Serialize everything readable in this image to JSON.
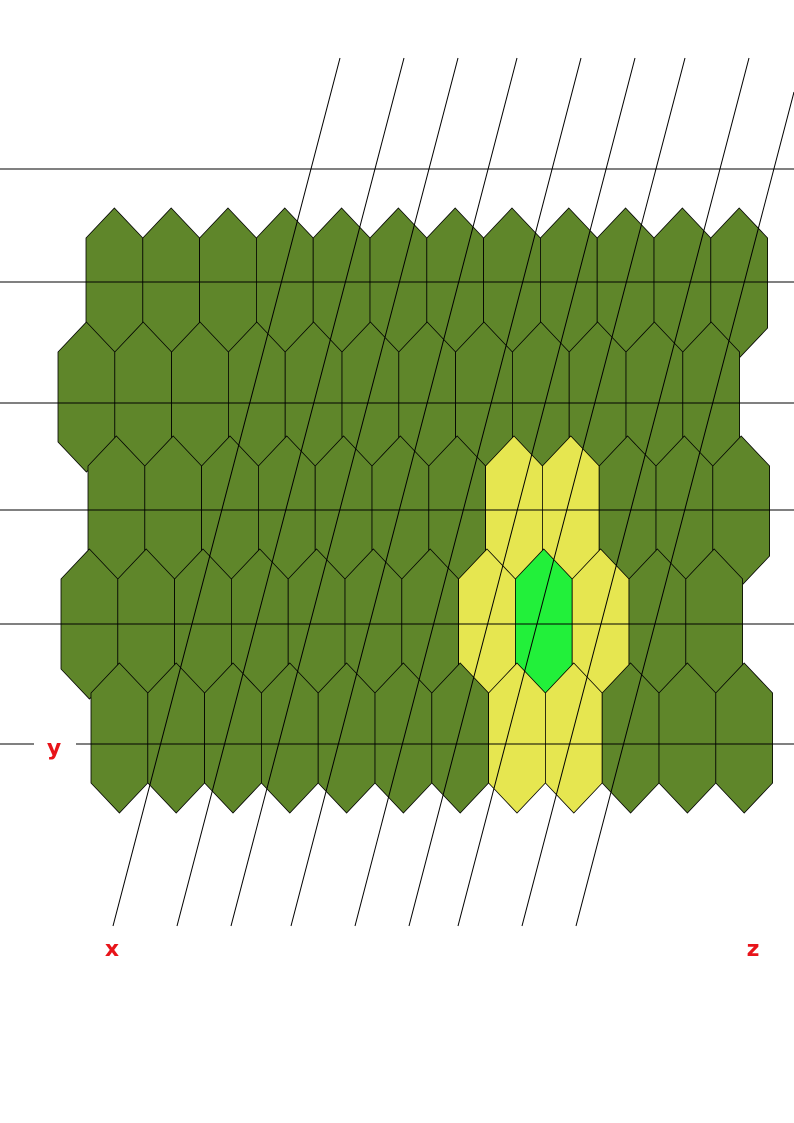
{
  "diagram": {
    "axis_labels": {
      "x": "x",
      "y": "y",
      "z": "z"
    },
    "grid": {
      "rows": 6,
      "columns": 12,
      "row_shift_pattern": [
        0,
        -1,
        0,
        -1,
        0,
        0
      ]
    },
    "highlighted_cells": [
      {
        "row": 2,
        "col": 7,
        "state": "neighbor"
      },
      {
        "row": 2,
        "col": 8,
        "state": "neighbor"
      },
      {
        "row": 3,
        "col": 7,
        "state": "neighbor"
      },
      {
        "row": 3,
        "col": 8,
        "state": "selected"
      },
      {
        "row": 3,
        "col": 9,
        "state": "neighbor"
      },
      {
        "row": 4,
        "col": 7,
        "state": "neighbor"
      },
      {
        "row": 4,
        "col": 8,
        "state": "neighbor"
      }
    ],
    "colors": {
      "cell": "#5f862a",
      "neighbor": "#e6e650",
      "selected": "#22f03a",
      "outline": "#000000",
      "line": "#000000",
      "axis_label": "#e8141a"
    }
  }
}
